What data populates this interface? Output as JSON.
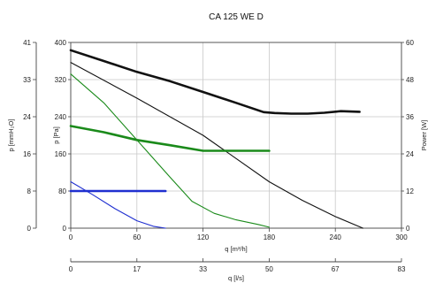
{
  "chart_data": {
    "type": "line",
    "title": "CA 125 WE D",
    "x_axis": {
      "label": "q [m³/h]",
      "range": [
        0,
        300
      ],
      "ticks": [
        0,
        60,
        120,
        180,
        240,
        300
      ]
    },
    "x_axis_secondary": {
      "label": "q [l/s]",
      "range": [
        0,
        83
      ],
      "ticks": [
        "0",
        "17",
        "33",
        "50",
        "67",
        "83"
      ]
    },
    "y_axis_left": {
      "label": "p [Pa]",
      "range": [
        0,
        400
      ],
      "ticks": [
        0,
        80,
        160,
        240,
        320,
        400
      ]
    },
    "y_axis_left_outer": {
      "label": "p [mmH₂O]",
      "ticks": [
        "0",
        "8",
        "16",
        "24",
        "33",
        "41"
      ]
    },
    "y_axis_right": {
      "label": "Power [W]",
      "range": [
        0,
        60
      ],
      "ticks": [
        0,
        12,
        24,
        36,
        48,
        60
      ]
    },
    "grid": true,
    "series": [
      {
        "color": "#111111",
        "width": 2.6,
        "axis": "right",
        "points": [
          [
            0,
            57.5
          ],
          [
            30,
            54
          ],
          [
            60,
            50.5
          ],
          [
            90,
            47.5
          ],
          [
            120,
            44
          ],
          [
            150,
            40.5
          ],
          [
            175,
            37.5
          ],
          [
            185,
            37.2
          ],
          [
            200,
            37
          ],
          [
            215,
            37
          ],
          [
            230,
            37.3
          ],
          [
            245,
            37.8
          ],
          [
            262,
            37.6
          ]
        ]
      },
      {
        "color": "#111111",
        "width": 1.1,
        "axis": "left",
        "points": [
          [
            0,
            357
          ],
          [
            60,
            280
          ],
          [
            120,
            200
          ],
          [
            180,
            100
          ],
          [
            210,
            60
          ],
          [
            240,
            25
          ],
          [
            265,
            0
          ]
        ]
      },
      {
        "color": "#1a8a1a",
        "width": 2.6,
        "axis": "right",
        "points": [
          [
            0,
            33
          ],
          [
            30,
            31
          ],
          [
            60,
            28.5
          ],
          [
            90,
            26.8
          ],
          [
            120,
            25
          ],
          [
            150,
            25
          ],
          [
            180,
            25
          ]
        ]
      },
      {
        "color": "#1a8a1a",
        "width": 1.1,
        "axis": "left",
        "points": [
          [
            0,
            332
          ],
          [
            30,
            270
          ],
          [
            60,
            190
          ],
          [
            90,
            110
          ],
          [
            110,
            58
          ],
          [
            130,
            32
          ],
          [
            150,
            18
          ],
          [
            170,
            8
          ],
          [
            180,
            2
          ]
        ]
      },
      {
        "color": "#1f2fd0",
        "width": 2.6,
        "axis": "right",
        "points": [
          [
            0,
            12
          ],
          [
            30,
            12
          ],
          [
            60,
            12
          ],
          [
            86,
            12
          ]
        ]
      },
      {
        "color": "#1f2fd0",
        "width": 1.1,
        "axis": "left",
        "points": [
          [
            0,
            100
          ],
          [
            20,
            72
          ],
          [
            40,
            42
          ],
          [
            60,
            16
          ],
          [
            75,
            4
          ],
          [
            86,
            0
          ]
        ]
      }
    ]
  }
}
